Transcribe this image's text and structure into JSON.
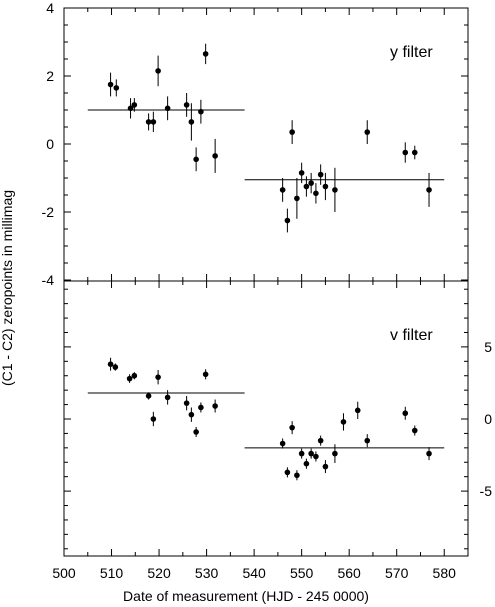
{
  "chart_data": [
    {
      "type": "scatter",
      "panel": "top",
      "filter_label": "y filter",
      "xlim": [
        500,
        585
      ],
      "ylim": [
        -4,
        4
      ],
      "x_ticks": [
        500,
        510,
        520,
        530,
        540,
        550,
        560,
        570,
        580
      ],
      "y_ticks": [
        -4,
        -2,
        0,
        2,
        4
      ],
      "points": [
        {
          "x": 509.8,
          "y": 1.75,
          "err": 0.35
        },
        {
          "x": 511.0,
          "y": 1.65,
          "err": 0.25
        },
        {
          "x": 514.0,
          "y": 1.05,
          "err": 0.3
        },
        {
          "x": 514.8,
          "y": 1.15,
          "err": 0.2
        },
        {
          "x": 517.8,
          "y": 0.65,
          "err": 0.25
        },
        {
          "x": 518.8,
          "y": 0.65,
          "err": 0.3
        },
        {
          "x": 519.8,
          "y": 2.15,
          "err": 0.45
        },
        {
          "x": 521.8,
          "y": 1.05,
          "err": 0.35
        },
        {
          "x": 525.8,
          "y": 1.15,
          "err": 0.35
        },
        {
          "x": 526.8,
          "y": 0.65,
          "err": 0.55
        },
        {
          "x": 527.8,
          "y": -0.45,
          "err": 0.35
        },
        {
          "x": 528.8,
          "y": 0.95,
          "err": 0.35
        },
        {
          "x": 529.8,
          "y": 2.65,
          "err": 0.3
        },
        {
          "x": 531.8,
          "y": -0.35,
          "err": 0.5
        },
        {
          "x": 546.0,
          "y": -1.35,
          "err": 0.35
        },
        {
          "x": 547.0,
          "y": -2.25,
          "err": 0.35
        },
        {
          "x": 548.0,
          "y": 0.35,
          "err": 0.35
        },
        {
          "x": 549.0,
          "y": -1.6,
          "err": 0.6
        },
        {
          "x": 550.0,
          "y": -0.85,
          "err": 0.3
        },
        {
          "x": 551.0,
          "y": -1.25,
          "err": 0.3
        },
        {
          "x": 552.0,
          "y": -1.15,
          "err": 0.3
        },
        {
          "x": 553.0,
          "y": -1.45,
          "err": 0.3
        },
        {
          "x": 554.0,
          "y": -0.9,
          "err": 0.3
        },
        {
          "x": 555.0,
          "y": -1.25,
          "err": 0.4
        },
        {
          "x": 557.0,
          "y": -1.35,
          "err": 0.65
        },
        {
          "x": 563.8,
          "y": 0.35,
          "err": 0.35
        },
        {
          "x": 571.8,
          "y": -0.25,
          "err": 0.3
        },
        {
          "x": 573.8,
          "y": -0.25,
          "err": 0.2
        },
        {
          "x": 576.8,
          "y": -1.35,
          "err": 0.5
        }
      ],
      "mean_lines": [
        {
          "x0": 505,
          "x1": 538,
          "y": 1.0
        },
        {
          "x0": 538,
          "x1": 580,
          "y": -1.05
        }
      ]
    },
    {
      "type": "scatter",
      "panel": "bottom",
      "filter_label": "v filter",
      "xlim": [
        500,
        585
      ],
      "ylim": [
        -9.5,
        9.5
      ],
      "y_ticks_right": [
        -5,
        0,
        5
      ],
      "points": [
        {
          "x": 509.8,
          "y": 3.8,
          "err": 0.45
        },
        {
          "x": 510.8,
          "y": 3.6,
          "err": 0.25
        },
        {
          "x": 513.8,
          "y": 2.8,
          "err": 0.3
        },
        {
          "x": 514.8,
          "y": 3.0,
          "err": 0.25
        },
        {
          "x": 517.8,
          "y": 1.6,
          "err": 0.25
        },
        {
          "x": 518.8,
          "y": 0.0,
          "err": 0.5
        },
        {
          "x": 519.8,
          "y": 2.9,
          "err": 0.5
        },
        {
          "x": 521.8,
          "y": 1.5,
          "err": 0.5
        },
        {
          "x": 525.8,
          "y": 1.1,
          "err": 0.5
        },
        {
          "x": 526.8,
          "y": 0.3,
          "err": 0.5
        },
        {
          "x": 527.8,
          "y": -0.9,
          "err": 0.35
        },
        {
          "x": 528.8,
          "y": 0.8,
          "err": 0.35
        },
        {
          "x": 529.8,
          "y": 3.1,
          "err": 0.35
        },
        {
          "x": 531.8,
          "y": 0.9,
          "err": 0.45
        },
        {
          "x": 546.0,
          "y": -1.7,
          "err": 0.35
        },
        {
          "x": 547.0,
          "y": -3.7,
          "err": 0.35
        },
        {
          "x": 548.0,
          "y": -0.6,
          "err": 0.45
        },
        {
          "x": 549.0,
          "y": -3.9,
          "err": 0.35
        },
        {
          "x": 550.0,
          "y": -2.4,
          "err": 0.35
        },
        {
          "x": 551.0,
          "y": -3.1,
          "err": 0.35
        },
        {
          "x": 552.0,
          "y": -2.4,
          "err": 0.35
        },
        {
          "x": 553.0,
          "y": -2.6,
          "err": 0.35
        },
        {
          "x": 554.0,
          "y": -1.5,
          "err": 0.35
        },
        {
          "x": 555.0,
          "y": -3.3,
          "err": 0.45
        },
        {
          "x": 557.0,
          "y": -2.4,
          "err": 0.65
        },
        {
          "x": 558.8,
          "y": -0.2,
          "err": 0.6
        },
        {
          "x": 561.8,
          "y": 0.6,
          "err": 0.6
        },
        {
          "x": 563.8,
          "y": -1.5,
          "err": 0.45
        },
        {
          "x": 571.8,
          "y": 0.4,
          "err": 0.45
        },
        {
          "x": 573.8,
          "y": -0.8,
          "err": 0.35
        },
        {
          "x": 576.8,
          "y": -2.4,
          "err": 0.45
        }
      ],
      "mean_lines": [
        {
          "x0": 505,
          "x1": 538,
          "y": 1.8
        },
        {
          "x0": 538,
          "x1": 580,
          "y": -2.0
        }
      ]
    }
  ],
  "axis_labels": {
    "ylabel": "(C1 - C2) zeropoints in millimag",
    "xlabel": "Date of measurement (HJD - 245 0000)"
  }
}
